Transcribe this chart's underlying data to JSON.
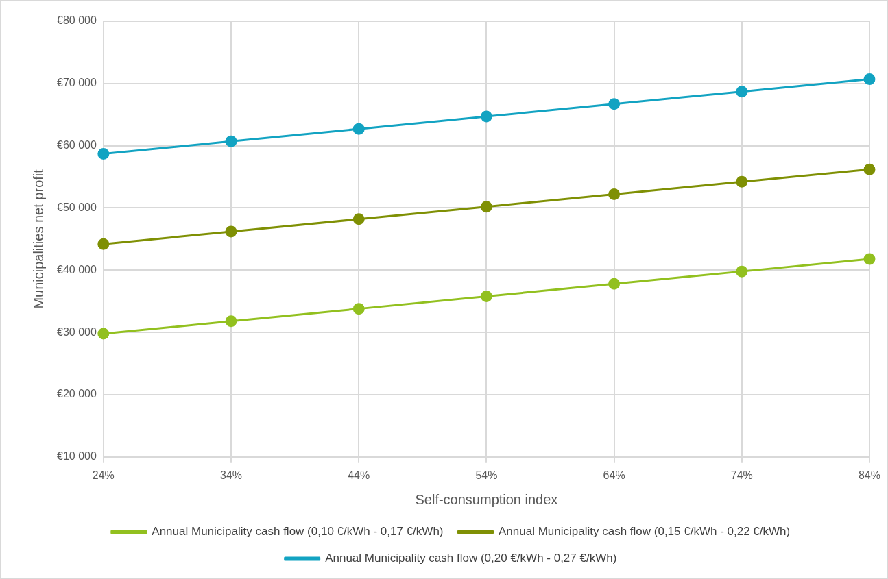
{
  "chart_data": {
    "type": "line",
    "xlabel": "Self-consumption index",
    "ylabel": "Municipalities net profit",
    "categories": [
      "24%",
      "34%",
      "44%",
      "54%",
      "64%",
      "74%",
      "84%"
    ],
    "series": [
      {
        "name": "Annual Municipality cash flow (0,10 €/kWh - 0,17 €/kWh)",
        "color": "#92c01f",
        "values": [
          29800,
          31800,
          33800,
          35800,
          37800,
          39800,
          41800
        ]
      },
      {
        "name": "Annual Municipality cash flow (0,15 €/kWh - 0,22 €/kWh)",
        "color": "#7f9004",
        "values": [
          44200,
          46200,
          48200,
          50200,
          52200,
          54200,
          56200
        ]
      },
      {
        "name": "Annual Municipality cash flow (0,20 €/kWh - 0,27 €/kWh)",
        "color": "#12a3c2",
        "values": [
          58700,
          60700,
          62700,
          64700,
          66700,
          68700,
          70700
        ]
      }
    ],
    "ylim": [
      10000,
      80000
    ],
    "yticks": [
      {
        "value": 10000,
        "label": "€10 000"
      },
      {
        "value": 20000,
        "label": "€20 000"
      },
      {
        "value": 30000,
        "label": "€30 000"
      },
      {
        "value": 40000,
        "label": "€40 000"
      },
      {
        "value": 50000,
        "label": "€50 000"
      },
      {
        "value": 60000,
        "label": "€60 000"
      },
      {
        "value": 70000,
        "label": "€70 000"
      },
      {
        "value": 80000,
        "label": "€80 000"
      }
    ],
    "grid": true,
    "legend": "bottom",
    "marker": "circle",
    "line_style": "solid"
  }
}
